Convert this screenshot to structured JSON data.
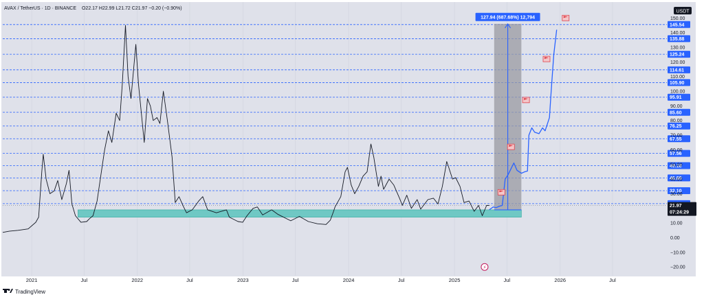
{
  "header": {
    "title": "AVAX / TetherUS · 1D · BINANCE",
    "ohlc": "O22.17 H22.99 L21.72 C21.97 −0.20 (−0.90%)",
    "currency": "USDT"
  },
  "logo": {
    "text": "TradingView"
  },
  "colors": {
    "background": "#dfe1ea",
    "line": "#131722",
    "level_line": "#2962ff",
    "level_box": "#2962ff",
    "support_zone": "#6fc8c4",
    "projection_box": "#9a9aa2",
    "flag": "#e0424b",
    "current_price_box": "#131722"
  },
  "chart_data": {
    "type": "line",
    "title": "",
    "xlabel": "",
    "ylabel": "",
    "x_ticks": [
      "2021",
      "Jul",
      "2022",
      "Jul",
      "2023",
      "Jul",
      "2024",
      "Jul",
      "2025",
      "Jul",
      "2026",
      "Jul"
    ],
    "x_tick_dates": [
      "2021-01-01",
      "2021-07-01",
      "2022-01-01",
      "2022-07-01",
      "2023-01-01",
      "2023-07-01",
      "2024-01-01",
      "2024-07-01",
      "2025-01-01",
      "2025-07-01",
      "2026-01-01",
      "2026-07-01"
    ],
    "xlim": [
      "2020-09-23",
      "2026-12-31"
    ],
    "ylim": [
      -26,
      152
    ],
    "y_ticks": [
      -20,
      -10,
      0,
      10,
      20,
      30,
      40,
      50,
      60,
      70,
      80,
      90,
      100,
      110,
      120,
      130,
      140,
      150
    ],
    "y_tick_labels": [
      "−20.00",
      "−10.00",
      "0.00",
      "10.00",
      "20.00",
      "30.00",
      "40.00",
      "50.00",
      "60.00",
      "70.00",
      "80.00",
      "90.00",
      "100.00",
      "110.00",
      "120.00",
      "130.00",
      "140.00",
      "150.00"
    ],
    "horizontal_levels": [
      145.54,
      135.88,
      125.24,
      114.61,
      105.9,
      95.91,
      85.6,
      76.25,
      67.55,
      57.56,
      49.18,
      40.8,
      32.1,
      23.24
    ],
    "horizontal_level_labels": [
      "145.54",
      "135.88",
      "125.24",
      "114.61",
      "105.90",
      "95.91",
      "85.60",
      "76.25",
      "67.55",
      "57.56",
      "49.18",
      "40.80",
      "32.10",
      "23.24"
    ],
    "current_price": 21.97,
    "current_price_label": "21.97",
    "countdown": "07:24:29",
    "support_zone": {
      "from_date": "2021-06-10",
      "to_date": "2025-08-20",
      "low": 14,
      "high": 19
    },
    "measure_box": {
      "from_date": "2025-05-18",
      "to_date": "2025-08-20",
      "low": 19,
      "high": 146
    },
    "measure_label": "127.94 (687.68%) 12,794",
    "series": [
      {
        "values": [
          [
            "2020-09-23",
            3.6
          ],
          [
            "2020-10-15",
            4.4
          ],
          [
            "2020-11-15",
            5.0
          ],
          [
            "2020-12-20",
            6.0
          ],
          [
            "2021-01-15",
            10.5
          ],
          [
            "2021-01-25",
            14.0
          ],
          [
            "2021-02-05",
            45.0
          ],
          [
            "2021-02-10",
            57.0
          ],
          [
            "2021-02-20",
            40.0
          ],
          [
            "2021-03-05",
            30.0
          ],
          [
            "2021-03-20",
            32.0
          ],
          [
            "2021-04-01",
            39.0
          ],
          [
            "2021-04-15",
            26.0
          ],
          [
            "2021-05-01",
            37.0
          ],
          [
            "2021-05-10",
            46.0
          ],
          [
            "2021-05-20",
            23.0
          ],
          [
            "2021-06-01",
            15.0
          ],
          [
            "2021-06-20",
            10.5
          ],
          [
            "2021-07-10",
            11.0
          ],
          [
            "2021-07-20",
            13.0
          ],
          [
            "2021-08-01",
            15.0
          ],
          [
            "2021-08-15",
            25.0
          ],
          [
            "2021-09-01",
            48.0
          ],
          [
            "2021-09-10",
            60.0
          ],
          [
            "2021-09-23",
            73.0
          ],
          [
            "2021-10-05",
            65.0
          ],
          [
            "2021-10-20",
            85.0
          ],
          [
            "2021-11-01",
            80.0
          ],
          [
            "2021-11-10",
            105.0
          ],
          [
            "2021-11-21",
            145.0
          ],
          [
            "2021-11-30",
            110.0
          ],
          [
            "2021-12-10",
            95.0
          ],
          [
            "2021-12-27",
            132.0
          ],
          [
            "2022-01-05",
            105.0
          ],
          [
            "2022-01-15",
            85.0
          ],
          [
            "2022-01-25",
            65.0
          ],
          [
            "2022-02-05",
            95.0
          ],
          [
            "2022-02-15",
            90.0
          ],
          [
            "2022-02-25",
            80.0
          ],
          [
            "2022-03-10",
            82.0
          ],
          [
            "2022-03-20",
            78.0
          ],
          [
            "2022-04-01",
            100.0
          ],
          [
            "2022-04-15",
            80.0
          ],
          [
            "2022-05-01",
            55.0
          ],
          [
            "2022-05-12",
            24.0
          ],
          [
            "2022-05-25",
            28.0
          ],
          [
            "2022-06-10",
            21.0
          ],
          [
            "2022-06-20",
            17.0
          ],
          [
            "2022-07-10",
            19.0
          ],
          [
            "2022-08-01",
            25.0
          ],
          [
            "2022-08-15",
            28.0
          ],
          [
            "2022-09-01",
            19.0
          ],
          [
            "2022-10-01",
            17.0
          ],
          [
            "2022-11-05",
            19.0
          ],
          [
            "2022-11-15",
            14.0
          ],
          [
            "2022-12-15",
            11.0
          ],
          [
            "2022-12-31",
            10.5
          ],
          [
            "2023-01-15",
            15.0
          ],
          [
            "2023-02-05",
            20.0
          ],
          [
            "2023-02-20",
            21.0
          ],
          [
            "2023-03-10",
            15.5
          ],
          [
            "2023-04-10",
            19.0
          ],
          [
            "2023-05-01",
            16.0
          ],
          [
            "2023-06-15",
            11.5
          ],
          [
            "2023-07-15",
            14.5
          ],
          [
            "2023-08-15",
            11.0
          ],
          [
            "2023-09-15",
            9.5
          ],
          [
            "2023-10-15",
            9.0
          ],
          [
            "2023-10-30",
            12.0
          ],
          [
            "2023-11-10",
            18.0
          ],
          [
            "2023-11-15",
            21.0
          ],
          [
            "2023-12-05",
            28.0
          ],
          [
            "2023-12-20",
            45.0
          ],
          [
            "2023-12-28",
            48.0
          ],
          [
            "2024-01-10",
            36.0
          ],
          [
            "2024-01-22",
            30.0
          ],
          [
            "2024-02-05",
            35.0
          ],
          [
            "2024-02-20",
            42.0
          ],
          [
            "2024-03-05",
            45.0
          ],
          [
            "2024-03-18",
            64.0
          ],
          [
            "2024-03-28",
            55.0
          ],
          [
            "2024-04-13",
            35.0
          ],
          [
            "2024-04-22",
            42.0
          ],
          [
            "2024-05-01",
            33.0
          ],
          [
            "2024-05-20",
            40.0
          ],
          [
            "2024-06-05",
            36.0
          ],
          [
            "2024-06-25",
            27.0
          ],
          [
            "2024-07-05",
            22.0
          ],
          [
            "2024-07-20",
            29.0
          ],
          [
            "2024-08-05",
            20.0
          ],
          [
            "2024-08-25",
            26.0
          ],
          [
            "2024-09-06",
            19.5
          ],
          [
            "2024-10-01",
            26.0
          ],
          [
            "2024-10-20",
            27.0
          ],
          [
            "2024-11-05",
            23.0
          ],
          [
            "2024-11-20",
            35.0
          ],
          [
            "2024-12-05",
            52.0
          ],
          [
            "2024-12-12",
            48.0
          ],
          [
            "2024-12-25",
            40.0
          ],
          [
            "2025-01-05",
            41.0
          ],
          [
            "2025-01-20",
            35.0
          ],
          [
            "2025-02-03",
            24.0
          ],
          [
            "2025-02-20",
            25.0
          ],
          [
            "2025-03-10",
            18.0
          ],
          [
            "2025-03-25",
            22.0
          ],
          [
            "2025-04-07",
            15.0
          ],
          [
            "2025-04-22",
            22.0
          ],
          [
            "2025-05-01",
            22.0
          ]
        ]
      },
      {
        "values": [
          [
            "2025-05-01",
            19.0
          ],
          [
            "2025-05-15",
            21.0
          ],
          [
            "2025-05-25",
            20.5
          ],
          [
            "2025-06-05",
            21.5
          ],
          [
            "2025-06-15",
            22.0
          ],
          [
            "2025-06-25",
            40.0
          ],
          [
            "2025-07-05",
            43.0
          ],
          [
            "2025-07-15",
            47.0
          ],
          [
            "2025-07-25",
            51.0
          ],
          [
            "2025-08-05",
            46.0
          ],
          [
            "2025-08-20",
            44.0
          ],
          [
            "2025-09-01",
            45.0
          ],
          [
            "2025-09-10",
            45.5
          ],
          [
            "2025-09-15",
            70.0
          ],
          [
            "2025-09-25",
            75.0
          ],
          [
            "2025-10-05",
            72.0
          ],
          [
            "2025-10-20",
            71.0
          ],
          [
            "2025-11-01",
            75.0
          ],
          [
            "2025-11-10",
            73.0
          ],
          [
            "2025-11-25",
            82.0
          ],
          [
            "2025-12-01",
            100.0
          ],
          [
            "2025-12-10",
            125.0
          ],
          [
            "2025-12-20",
            142.0
          ]
        ]
      }
    ],
    "flags": [
      {
        "date": "2025-06-12",
        "value": 31
      },
      {
        "date": "2025-07-15",
        "value": 62
      },
      {
        "date": "2025-09-05",
        "value": 94
      },
      {
        "date": "2025-11-15",
        "value": 122
      },
      {
        "date": "2026-01-20",
        "value": 150
      }
    ],
    "annotations": [
      {
        "date": "2025-04-15",
        "value": -20,
        "text": "⚡"
      }
    ]
  }
}
